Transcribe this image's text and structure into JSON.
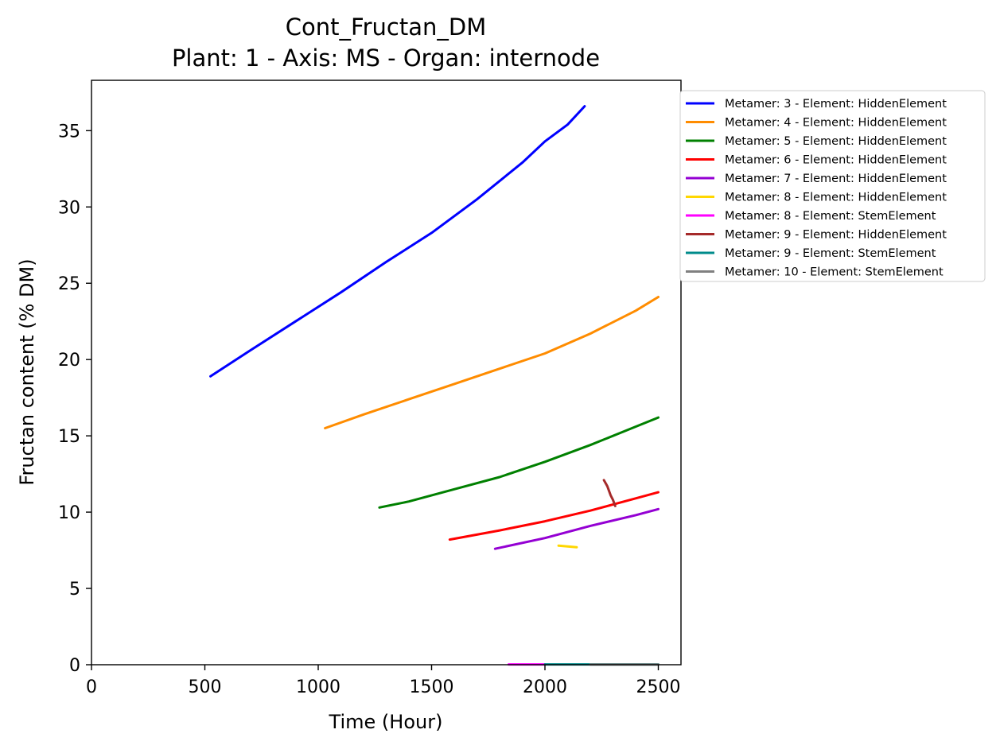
{
  "chart_data": {
    "type": "line",
    "title": "Cont_Fructan_DM",
    "subtitle": "Plant: 1 - Axis: MS - Organ: internode",
    "xlabel": "Time (Hour)",
    "ylabel": "Fructan content (% DM)",
    "xlim": [
      0,
      2600
    ],
    "ylim": [
      0,
      38.3
    ],
    "xticks": [
      0,
      500,
      1000,
      1500,
      2000,
      2500
    ],
    "yticks": [
      0,
      5,
      10,
      15,
      20,
      25,
      30,
      35
    ],
    "grid": false,
    "legend_position": "outside upper right",
    "series": [
      {
        "name": "Metamer: 3 - Element: HiddenElement",
        "color": "#0000ff",
        "x": [
          525,
          700,
          900,
          1100,
          1300,
          1500,
          1700,
          1900,
          2000,
          2100,
          2175
        ],
        "y": [
          18.9,
          20.6,
          22.5,
          24.4,
          26.4,
          28.3,
          30.5,
          32.9,
          34.3,
          35.4,
          36.6
        ]
      },
      {
        "name": "Metamer: 4 - Element: HiddenElement",
        "color": "#ff8c00",
        "x": [
          1030,
          1200,
          1400,
          1600,
          1800,
          2000,
          2200,
          2400,
          2500
        ],
        "y": [
          15.5,
          16.4,
          17.4,
          18.4,
          19.4,
          20.4,
          21.7,
          23.2,
          24.1
        ]
      },
      {
        "name": "Metamer: 5 - Element: HiddenElement",
        "color": "#008000",
        "x": [
          1270,
          1400,
          1600,
          1800,
          2000,
          2200,
          2400,
          2500
        ],
        "y": [
          10.3,
          10.7,
          11.5,
          12.3,
          13.3,
          14.4,
          15.6,
          16.2
        ]
      },
      {
        "name": "Metamer: 6 - Element: HiddenElement",
        "color": "#ff0000",
        "x": [
          1580,
          1800,
          2000,
          2200,
          2400,
          2500
        ],
        "y": [
          8.2,
          8.8,
          9.4,
          10.1,
          10.9,
          11.3
        ]
      },
      {
        "name": "Metamer: 7 - Element: HiddenElement",
        "color": "#9400d3",
        "x": [
          1780,
          2000,
          2200,
          2400,
          2500
        ],
        "y": [
          7.6,
          8.3,
          9.1,
          9.8,
          10.2
        ]
      },
      {
        "name": "Metamer: 8 - Element: HiddenElement",
        "color": "#ffd700",
        "x": [
          2060,
          2100,
          2140
        ],
        "y": [
          7.8,
          7.75,
          7.7
        ]
      },
      {
        "name": "Metamer: 8 - Element: StemElement",
        "color": "#ff00ff",
        "x": [
          1840,
          1900,
          1960,
          2000
        ],
        "y": [
          0.02,
          0.02,
          0.02,
          0.02
        ]
      },
      {
        "name": "Metamer: 9 - Element: HiddenElement",
        "color": "#a52a2a",
        "x": [
          2260,
          2275,
          2280,
          2290,
          2300,
          2310
        ],
        "y": [
          12.1,
          11.7,
          11.5,
          11.1,
          10.8,
          10.4
        ]
      },
      {
        "name": "Metamer: 9 - Element: StemElement",
        "color": "#008b8b",
        "x": [
          2000,
          2100,
          2200,
          2300,
          2400,
          2500
        ],
        "y": [
          0.02,
          0.02,
          0.02,
          0.02,
          0.02,
          0.02
        ]
      },
      {
        "name": "Metamer: 10 - Element: StemElement",
        "color": "#808080",
        "x": [
          2200,
          2300,
          2400,
          2500
        ],
        "y": [
          0.01,
          0.01,
          0.01,
          0.01
        ]
      }
    ]
  }
}
